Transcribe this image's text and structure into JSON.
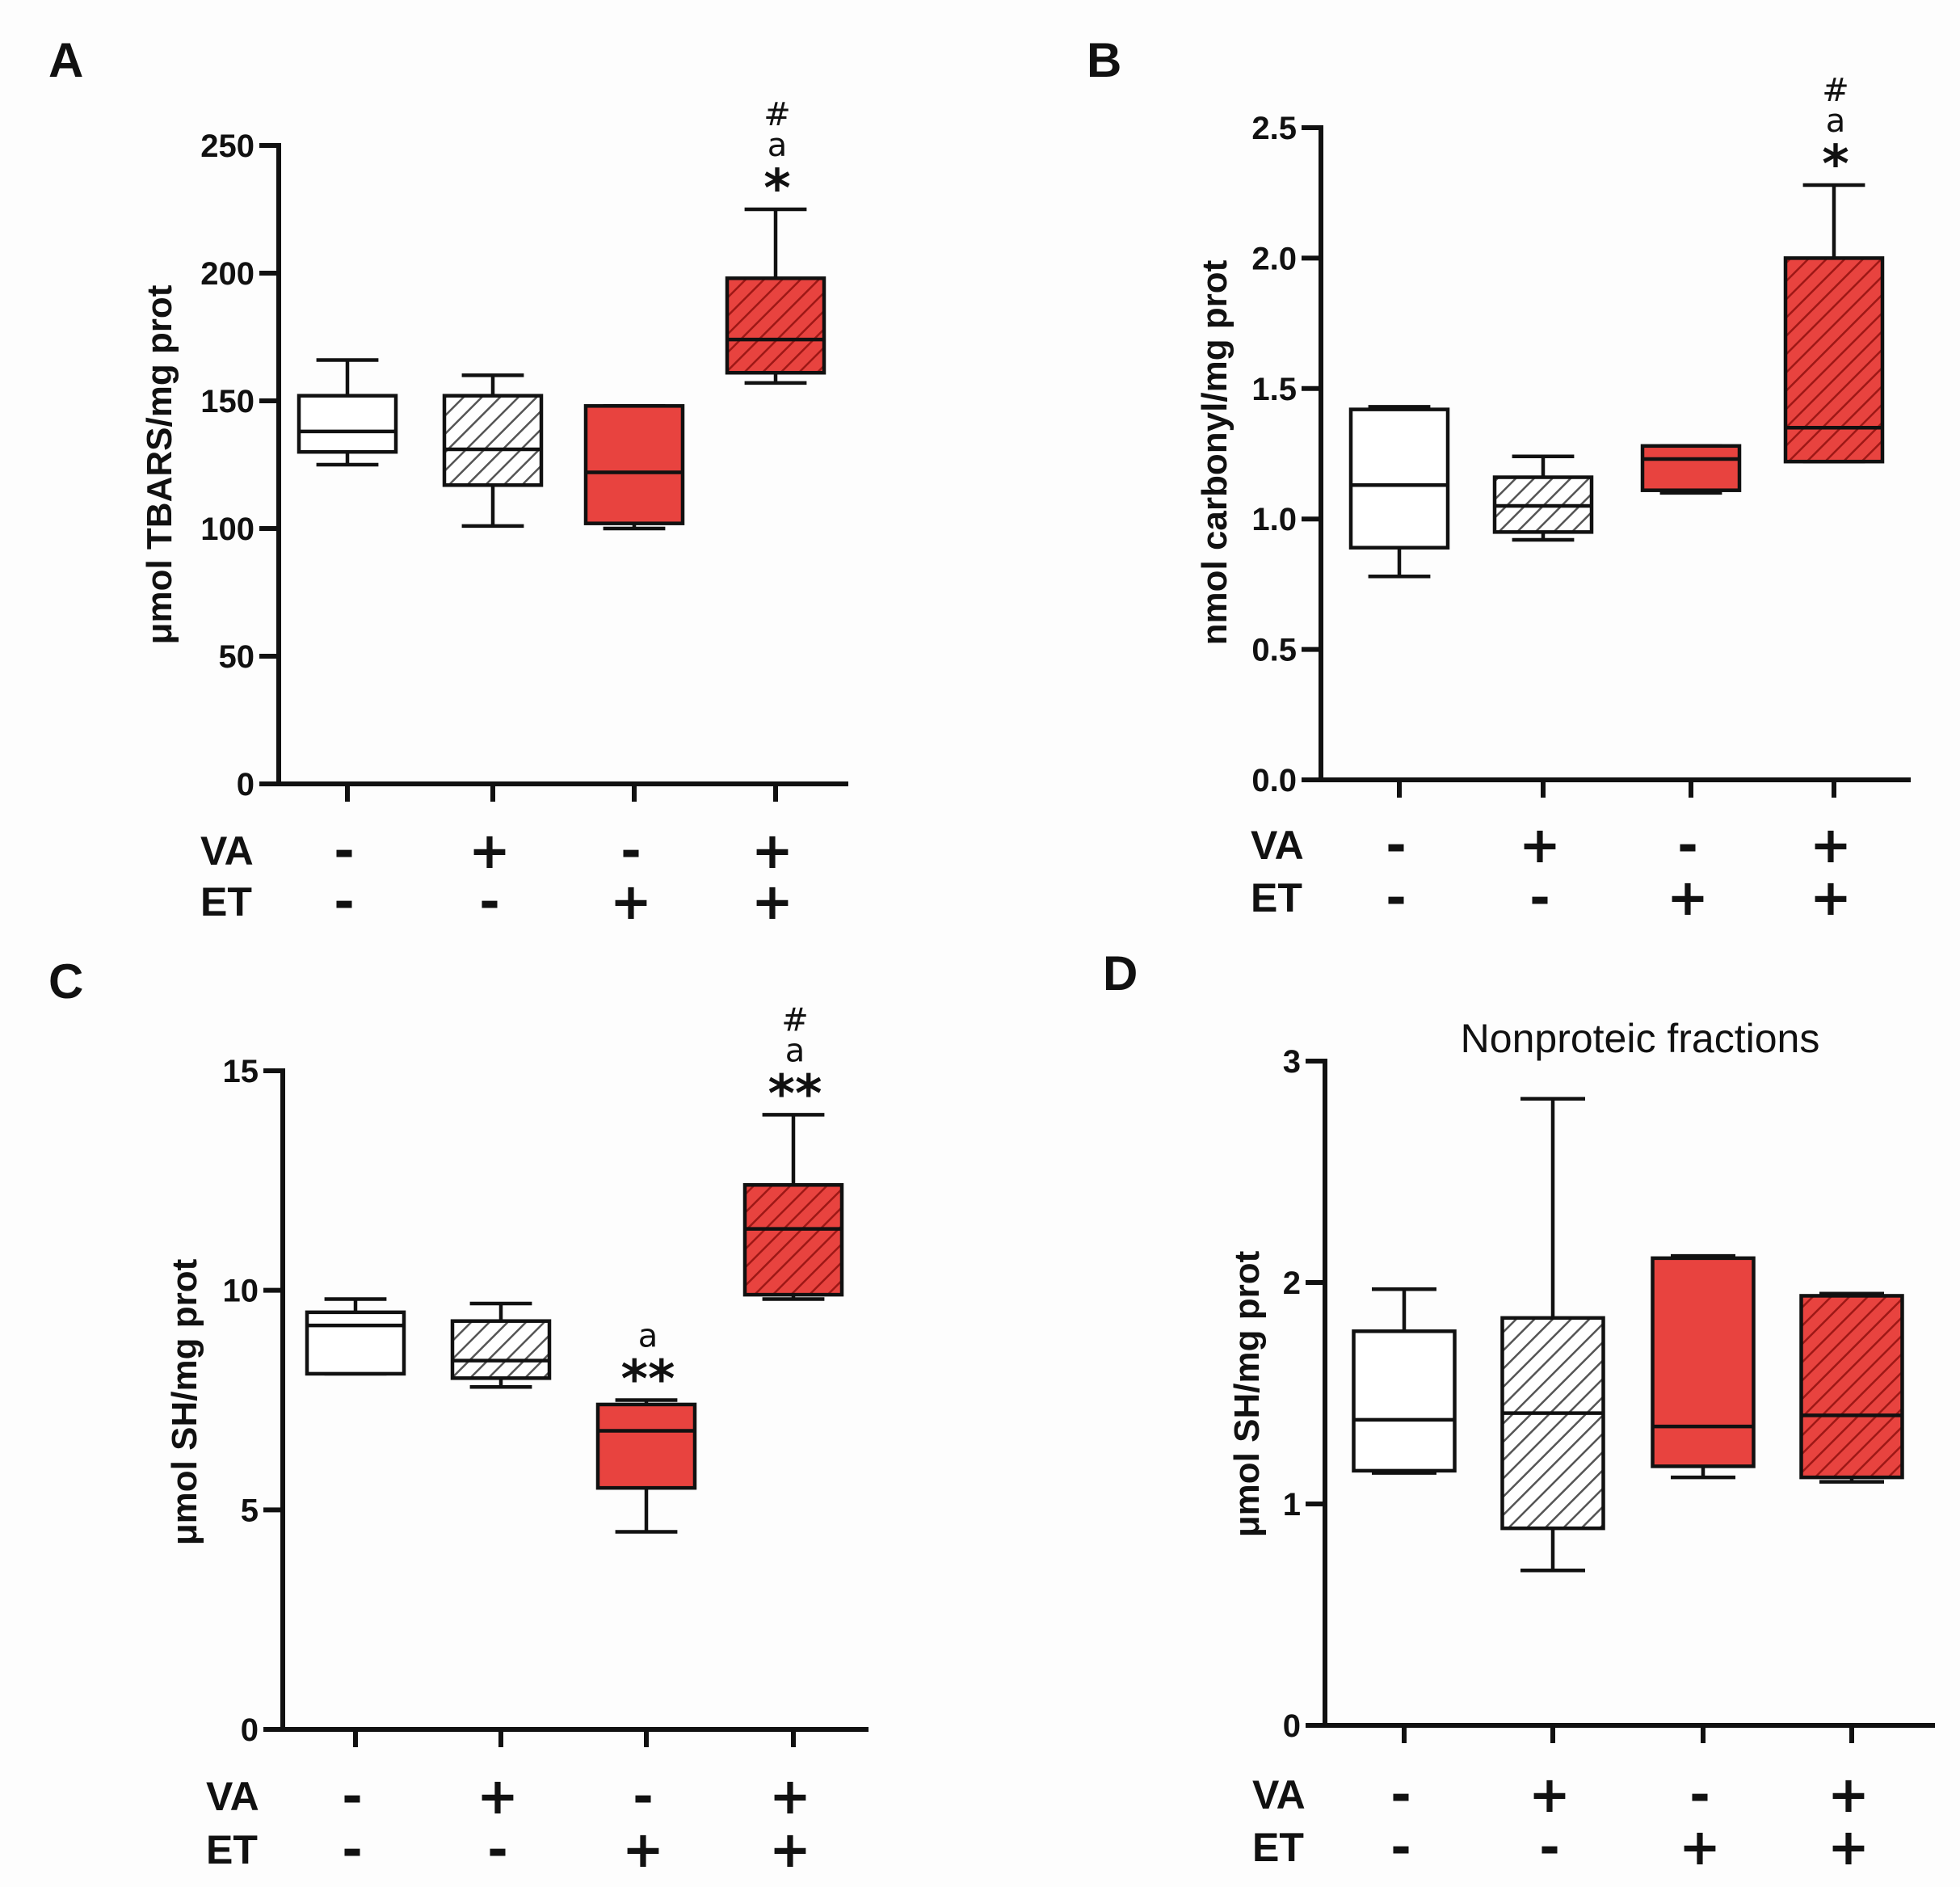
{
  "colors": {
    "white": "#ffffff",
    "gray": "#bdbdbd",
    "red": "#e8433f",
    "redHatch": "#a71d1b"
  },
  "groups": {
    "row_labels": [
      "VA",
      "ET"
    ],
    "VA": [
      "-",
      "+",
      "-",
      "+"
    ],
    "ET": [
      "-",
      "-",
      "+",
      "+"
    ]
  },
  "chart_data": [
    {
      "type": "box",
      "panel": "A",
      "title": "",
      "ylabel": "μmol TBARS/mg prot",
      "ylim": [
        0,
        250
      ],
      "yticks": [
        0,
        50,
        100,
        150,
        200,
        250
      ],
      "ytick_labels": [
        "0",
        "50",
        "100",
        "150",
        "200",
        "250"
      ],
      "series": [
        {
          "name": "VA- ET-",
          "style": "white",
          "min": 125,
          "q1": 130,
          "median": 138,
          "q3": 152,
          "max": 166,
          "annotations": []
        },
        {
          "name": "VA+ ET-",
          "style": "gray",
          "min": 101,
          "q1": 117,
          "median": 131,
          "q3": 152,
          "max": 160,
          "annotations": []
        },
        {
          "name": "VA- ET+",
          "style": "red",
          "min": 100,
          "q1": 102,
          "median": 122,
          "q3": 148,
          "max": 148,
          "annotations": []
        },
        {
          "name": "VA+ ET+",
          "style": "redHatch",
          "min": 157,
          "q1": 161,
          "median": 174,
          "q3": 198,
          "max": 225,
          "annotations": [
            "#",
            "a",
            "*"
          ]
        }
      ]
    },
    {
      "type": "box",
      "panel": "B",
      "title": "",
      "ylabel": "nmol carbonyl/mg prot",
      "ylim": [
        0,
        2.5
      ],
      "yticks": [
        0,
        0.5,
        1,
        1.5,
        2,
        2.5
      ],
      "ytick_labels": [
        "0.0",
        "0.5",
        "1.0",
        "1.5",
        "2.0",
        "2.5"
      ],
      "series": [
        {
          "name": "VA- ET-",
          "style": "white",
          "min": 0.78,
          "q1": 0.89,
          "median": 1.13,
          "q3": 1.42,
          "max": 1.43,
          "annotations": []
        },
        {
          "name": "VA+ ET-",
          "style": "gray",
          "min": 0.92,
          "q1": 0.95,
          "median": 1.05,
          "q3": 1.16,
          "max": 1.24,
          "annotations": []
        },
        {
          "name": "VA- ET+",
          "style": "red",
          "min": 1.1,
          "q1": 1.11,
          "median": 1.23,
          "q3": 1.28,
          "max": 1.28,
          "annotations": []
        },
        {
          "name": "VA+ ET+",
          "style": "redHatch",
          "min": 1.22,
          "q1": 1.22,
          "median": 1.35,
          "q3": 2.0,
          "max": 2.28,
          "annotations": [
            "#",
            "a",
            "*"
          ]
        }
      ]
    },
    {
      "type": "box",
      "panel": "C",
      "title": "",
      "ylabel": "μmol SH/mg prot",
      "ylim": [
        0,
        15
      ],
      "yticks": [
        0,
        5,
        10,
        15
      ],
      "ytick_labels": [
        "0",
        "5",
        "10",
        "15"
      ],
      "series": [
        {
          "name": "VA- ET-",
          "style": "white",
          "min": 8.1,
          "q1": 8.1,
          "median": 9.2,
          "q3": 9.5,
          "max": 9.8,
          "annotations": []
        },
        {
          "name": "VA+ ET-",
          "style": "gray",
          "min": 7.8,
          "q1": 8.0,
          "median": 8.4,
          "q3": 9.3,
          "max": 9.7,
          "annotations": []
        },
        {
          "name": "VA- ET+",
          "style": "red",
          "min": 4.5,
          "q1": 5.5,
          "median": 6.8,
          "q3": 7.4,
          "max": 7.5,
          "annotations": [
            "a",
            "**"
          ]
        },
        {
          "name": "VA+ ET+",
          "style": "redHatch",
          "min": 9.8,
          "q1": 9.9,
          "median": 11.4,
          "q3": 12.4,
          "max": 14.0,
          "annotations": [
            "#",
            "a",
            "**"
          ]
        }
      ]
    },
    {
      "type": "box",
      "panel": "D",
      "title": "Nonproteic fractions",
      "ylabel": "μmol SH/mg prot",
      "ylim": [
        0,
        3
      ],
      "yticks": [
        0,
        1,
        2,
        3
      ],
      "ytick_labels": [
        "0",
        "1",
        "2",
        "3"
      ],
      "series": [
        {
          "name": "VA- ET-",
          "style": "white",
          "min": 1.14,
          "q1": 1.15,
          "median": 1.38,
          "q3": 1.78,
          "max": 1.97,
          "annotations": []
        },
        {
          "name": "VA+ ET-",
          "style": "gray",
          "min": 0.7,
          "q1": 0.89,
          "median": 1.41,
          "q3": 1.84,
          "max": 2.83,
          "annotations": []
        },
        {
          "name": "VA- ET+",
          "style": "red",
          "min": 1.12,
          "q1": 1.17,
          "median": 1.35,
          "q3": 2.11,
          "max": 2.12,
          "annotations": []
        },
        {
          "name": "VA+ ET+",
          "style": "redHatch",
          "min": 1.1,
          "q1": 1.12,
          "median": 1.4,
          "q3": 1.94,
          "max": 1.95,
          "annotations": []
        }
      ]
    }
  ]
}
